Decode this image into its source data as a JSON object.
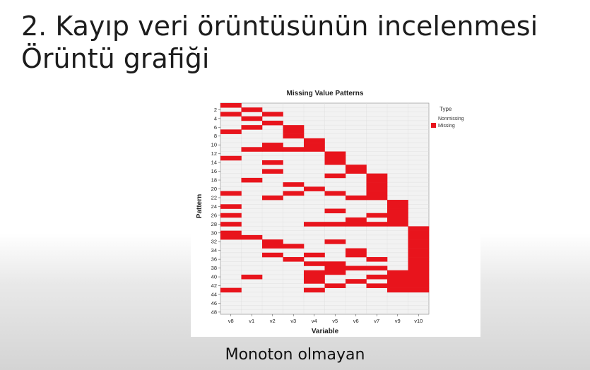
{
  "slide": {
    "title_line1": "2. Kayıp veri örüntüsünün incelenmesi",
    "title_line2": "Örüntü grafiği",
    "subtitle": "Monoton olmayan"
  },
  "colors": {
    "missing": "#e8141c",
    "nonmissing": "#f2f2f2"
  },
  "chart_data": {
    "type": "heatmap",
    "title": "Missing Value Patterns",
    "xlabel": "Variable",
    "ylabel": "Pattern",
    "variables": [
      "v8",
      "v1",
      "v2",
      "v3",
      "v4",
      "v5",
      "v6",
      "v7",
      "v9",
      "v10"
    ],
    "pattern_tick_labels": [
      "2",
      "4",
      "6",
      "8",
      "10",
      "12",
      "14",
      "16",
      "18",
      "20",
      "22",
      "24",
      "26",
      "28",
      "30",
      "32",
      "34",
      "36",
      "38",
      "40",
      "42",
      "44",
      "46",
      "48"
    ],
    "legend": {
      "title": "Type",
      "entries": [
        "Nonmissing",
        "Missing"
      ]
    },
    "missing_cells": [
      [
        1,
        [
          0
        ]
      ],
      [
        2,
        [
          1
        ]
      ],
      [
        3,
        [
          0,
          2
        ]
      ],
      [
        4,
        [
          1
        ]
      ],
      [
        5,
        [
          2
        ]
      ],
      [
        6,
        [
          1,
          3
        ]
      ],
      [
        7,
        [
          0,
          3
        ]
      ],
      [
        8,
        [
          3
        ]
      ],
      [
        9,
        [
          4
        ]
      ],
      [
        10,
        [
          2,
          4
        ]
      ],
      [
        11,
        [
          1,
          2,
          3,
          4
        ]
      ],
      [
        12,
        [
          5
        ]
      ],
      [
        13,
        [
          0,
          5
        ]
      ],
      [
        14,
        [
          2,
          5
        ]
      ],
      [
        15,
        [
          6
        ]
      ],
      [
        16,
        [
          2,
          6
        ]
      ],
      [
        17,
        [
          5,
          7
        ]
      ],
      [
        18,
        [
          1,
          7
        ]
      ],
      [
        19,
        [
          3,
          7
        ]
      ],
      [
        20,
        [
          4,
          7
        ]
      ],
      [
        21,
        [
          0,
          3,
          5,
          7
        ]
      ],
      [
        22,
        [
          2,
          6,
          7
        ]
      ],
      [
        23,
        [
          8
        ]
      ],
      [
        24,
        [
          0,
          8
        ]
      ],
      [
        25,
        [
          5,
          8
        ]
      ],
      [
        26,
        [
          0,
          7,
          8
        ]
      ],
      [
        27,
        [
          6,
          8
        ]
      ],
      [
        28,
        [
          0,
          4,
          5,
          6,
          7,
          8
        ]
      ],
      [
        29,
        [
          9
        ]
      ],
      [
        30,
        [
          0,
          9
        ]
      ],
      [
        31,
        [
          0,
          1,
          9
        ]
      ],
      [
        32,
        [
          2,
          5,
          9
        ]
      ],
      [
        33,
        [
          2,
          3,
          9
        ]
      ],
      [
        34,
        [
          6,
          9
        ]
      ],
      [
        35,
        [
          2,
          4,
          6,
          9
        ]
      ],
      [
        36,
        [
          3,
          7,
          9
        ]
      ],
      [
        37,
        [
          4,
          5,
          9
        ]
      ],
      [
        38,
        [
          5,
          6,
          7,
          9
        ]
      ],
      [
        39,
        [
          4,
          5,
          8,
          9
        ]
      ],
      [
        40,
        [
          1,
          4,
          7,
          8,
          9
        ]
      ],
      [
        41,
        [
          4,
          6,
          8,
          9
        ]
      ],
      [
        42,
        [
          5,
          7,
          8,
          9
        ]
      ],
      [
        43,
        [
          0,
          4,
          8,
          9
        ]
      ]
    ]
  }
}
